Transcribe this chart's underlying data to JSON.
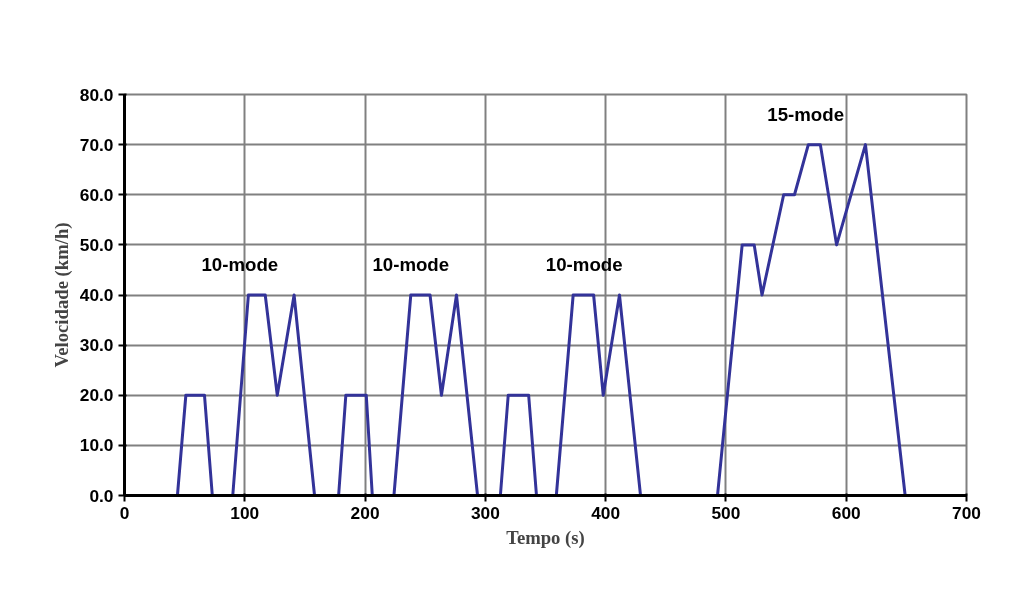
{
  "chart_data": {
    "type": "line",
    "xlabel": "Tempo (s)",
    "ylabel": "Velocidade (km/h)",
    "x": [
      0,
      44,
      51,
      66.5,
      73,
      90,
      103,
      117,
      127,
      141,
      158,
      178,
      184,
      201,
      206,
      224,
      238,
      254,
      263.5,
      276,
      293.5,
      312.5,
      319,
      336,
      342.5,
      359,
      373,
      390,
      398,
      411.5,
      429,
      493,
      513.5,
      523.5,
      530,
      548,
      557,
      568.5,
      578.5,
      592,
      616,
      649,
      661
    ],
    "series": [
      {
        "color": "#333399",
        "values": [
          0,
          0,
          20,
          20,
          0,
          0,
          40,
          40,
          20,
          40,
          0,
          0,
          20,
          20,
          0,
          0,
          40,
          40,
          20,
          40,
          0,
          0,
          20,
          20,
          0,
          0,
          40,
          40,
          20,
          40,
          0,
          0,
          50,
          50,
          40,
          60,
          60,
          70,
          70,
          50,
          70,
          0,
          0
        ]
      }
    ],
    "xlim": [
      0,
      700
    ],
    "xticks": [
      0,
      100,
      200,
      300,
      400,
      500,
      600,
      700
    ],
    "ylim": [
      0,
      80
    ],
    "yticks": [
      {
        "value": 0,
        "label": "0.0"
      },
      {
        "value": 10,
        "label": "10.0"
      },
      {
        "value": 20,
        "label": "20.0"
      },
      {
        "value": 30,
        "label": "30.0"
      },
      {
        "value": 40,
        "label": "40.0"
      },
      {
        "value": 50,
        "label": "50.0"
      },
      {
        "value": 60,
        "label": "60.0"
      },
      {
        "value": 70,
        "label": "70.0"
      },
      {
        "value": 80,
        "label": "80.0"
      }
    ],
    "grid": true,
    "marker": "none",
    "line_style": "solid",
    "annotations": [
      "10-mode",
      "10-mode",
      "10-mode",
      "15-mode"
    ]
  }
}
